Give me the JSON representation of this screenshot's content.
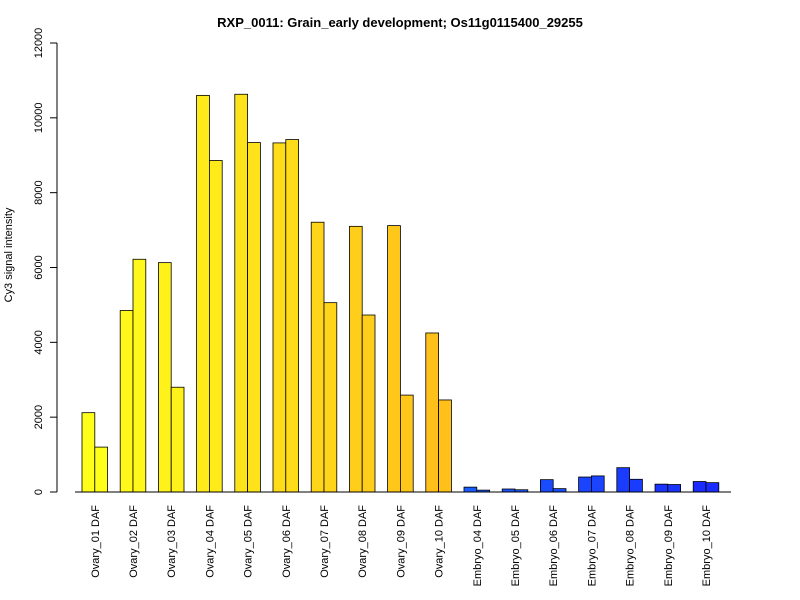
{
  "chart_data": {
    "type": "bar",
    "title": "RXP_0011: Grain_early development; Os11g0115400_29255",
    "xlabel": "",
    "ylabel": "Cy3 signal intensity",
    "ylim": [
      0,
      12000
    ],
    "yticks": [
      "0",
      "2000",
      "4000",
      "6000",
      "8000",
      "10000",
      "12000"
    ],
    "grid": false,
    "legend": "none",
    "categories": [
      "Ovary_01 DAF",
      "Ovary_02 DAF",
      "Ovary_03 DAF",
      "Ovary_04 DAF",
      "Ovary_05 DAF",
      "Ovary_06 DAF",
      "Ovary_07 DAF",
      "Ovary_08 DAF",
      "Ovary_09 DAF",
      "Ovary_10 DAF",
      "Embryo_04 DAF",
      "Embryo_05 DAF",
      "Embryo_06 DAF",
      "Embryo_07 DAF",
      "Embryo_08 DAF",
      "Embryo_09 DAF",
      "Embryo_10 DAF"
    ],
    "series": [
      {
        "values": [
          2120,
          4850,
          6130,
          10600,
          10630,
          9330,
          7210,
          7100,
          7120,
          4250,
          130,
          80,
          330,
          400,
          650,
          210,
          280
        ]
      },
      {
        "values": [
          1200,
          6220,
          2800,
          8860,
          9340,
          9420,
          5060,
          4730,
          2590,
          2460,
          50,
          60,
          90,
          430,
          340,
          200,
          250
        ]
      }
    ],
    "bar_colors": [
      "#FFFF1A",
      "#FFF81A",
      "#FFF11A",
      "#FFEA1A",
      "#FFE31A",
      "#FFDC1A",
      "#FFD51A",
      "#FFCE1A",
      "#FFC71A",
      "#FFC01A",
      "#1A5CFF",
      "#1A54FF",
      "#1A4CFF",
      "#1A44FF",
      "#1A3CFF",
      "#1A34FF",
      "#1A2CFF"
    ]
  }
}
